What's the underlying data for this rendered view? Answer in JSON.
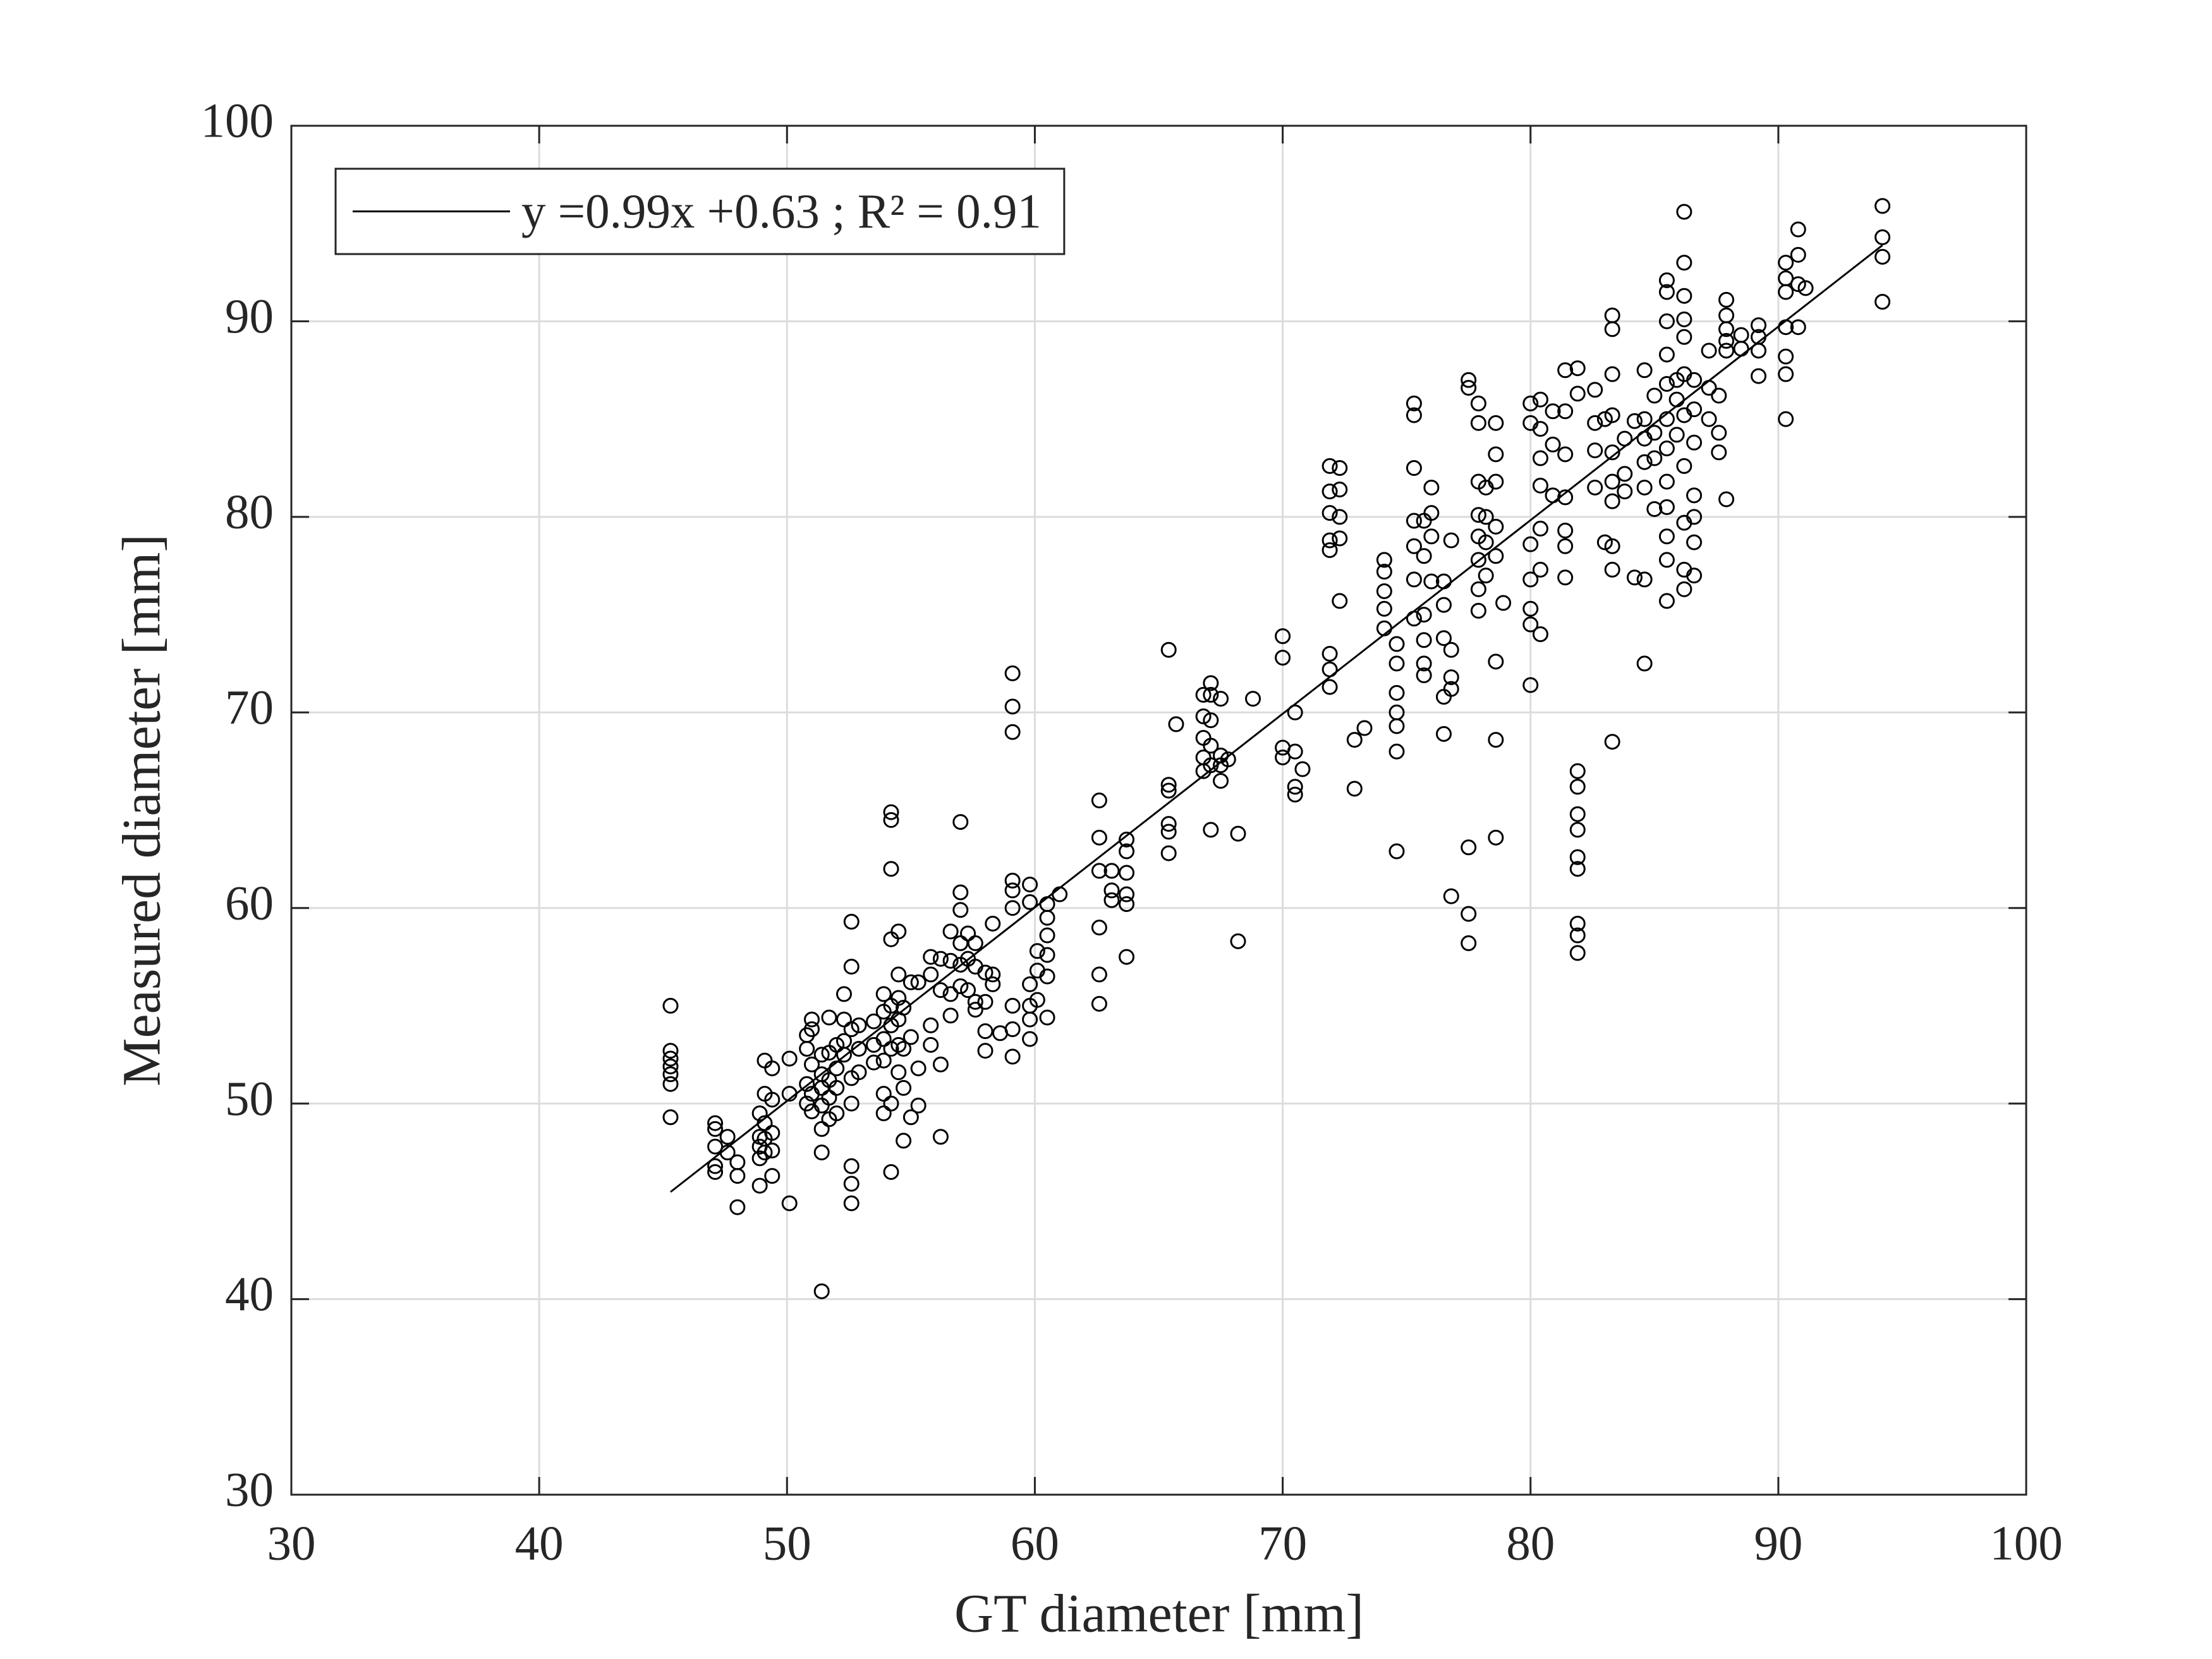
{
  "chart_data": {
    "type": "scatter",
    "xlabel": "GT diameter [mm]",
    "ylabel": "Measured diameter [mm]",
    "xlim": [
      30,
      100
    ],
    "ylim": [
      30,
      100
    ],
    "xticks": [
      30,
      40,
      50,
      60,
      70,
      80,
      90,
      100
    ],
    "yticks": [
      30,
      40,
      50,
      60,
      70,
      80,
      90,
      100
    ],
    "grid": true,
    "legend": "upper left",
    "series": [
      {
        "type": "scatter",
        "color": "#000000",
        "x": [
          45.3,
          45.3,
          45.3,
          45.3,
          45.3,
          45.3,
          45.3,
          47.1,
          47.1,
          47.1,
          47.1,
          47.1,
          47.6,
          47.6,
          48.0,
          48.0,
          48.0,
          48.9,
          48.9,
          48.9,
          48.9,
          48.9,
          49.1,
          49.1,
          49.1,
          49.1,
          49.1,
          49.4,
          49.4,
          49.4,
          49.4,
          49.4,
          50.1,
          50.1,
          50.1,
          50.8,
          50.8,
          50.8,
          50.8,
          51.0,
          51.0,
          51.0,
          51.0,
          51.0,
          51.4,
          51.4,
          51.4,
          51.4,
          51.4,
          51.4,
          51.4,
          51.7,
          51.7,
          51.7,
          51.7,
          51.7,
          52.0,
          52.0,
          52.0,
          52.0,
          52.3,
          52.3,
          52.3,
          52.3,
          52.6,
          52.6,
          52.6,
          52.6,
          52.6,
          52.6,
          52.6,
          52.6,
          52.9,
          52.9,
          52.9,
          53.5,
          53.5,
          53.5,
          53.9,
          53.9,
          53.9,
          53.9,
          53.9,
          53.9,
          54.2,
          54.2,
          54.2,
          54.2,
          54.2,
          54.2,
          54.2,
          54.2,
          54.2,
          54.5,
          54.5,
          54.5,
          54.5,
          54.5,
          54.5,
          54.7,
          54.7,
          54.7,
          54.7,
          55.0,
          55.0,
          55.0,
          55.3,
          55.3,
          55.3,
          55.8,
          55.8,
          55.8,
          55.8,
          56.2,
          56.2,
          56.2,
          56.2,
          56.6,
          56.6,
          56.6,
          56.6,
          57.0,
          57.0,
          57.0,
          57.0,
          57.0,
          57.0,
          57.3,
          57.3,
          57.3,
          57.6,
          57.6,
          57.6,
          57.6,
          58.0,
          58.0,
          58.0,
          58.0,
          58.3,
          58.3,
          58.3,
          58.6,
          59.1,
          59.1,
          59.1,
          59.1,
          59.1,
          59.1,
          59.1,
          59.1,
          59.1,
          59.8,
          59.8,
          59.8,
          59.8,
          59.8,
          59.8,
          60.1,
          60.1,
          60.1,
          60.5,
          60.5,
          60.5,
          60.5,
          60.5,
          60.5,
          61.0,
          62.6,
          62.6,
          62.6,
          62.6,
          62.6,
          62.6,
          63.1,
          63.1,
          63.1,
          63.7,
          63.7,
          63.7,
          63.7,
          63.7,
          63.7,
          65.4,
          65.4,
          65.4,
          65.4,
          65.4,
          65.4,
          65.7,
          66.8,
          66.8,
          66.8,
          66.8,
          66.8,
          67.1,
          67.1,
          67.1,
          67.1,
          67.1,
          67.1,
          67.5,
          67.5,
          67.5,
          67.5,
          67.8,
          68.2,
          68.2,
          68.8,
          70.0,
          70.0,
          70.0,
          70.0,
          70.5,
          70.5,
          70.5,
          70.5,
          70.8,
          71.9,
          71.9,
          71.9,
          71.9,
          71.9,
          71.9,
          71.9,
          71.9,
          72.3,
          72.3,
          72.3,
          72.3,
          72.3,
          72.9,
          72.9,
          73.3,
          74.1,
          74.1,
          74.1,
          74.1,
          74.1,
          74.6,
          74.6,
          74.6,
          74.6,
          74.6,
          74.6,
          74.6,
          75.3,
          75.3,
          75.3,
          75.3,
          75.3,
          75.3,
          75.3,
          75.7,
          75.7,
          75.7,
          75.7,
          75.7,
          75.7,
          76.0,
          76.0,
          76.0,
          76.0,
          76.5,
          76.5,
          76.5,
          76.5,
          76.5,
          76.8,
          76.8,
          76.8,
          76.8,
          76.8,
          77.5,
          77.5,
          77.5,
          77.5,
          77.5,
          77.9,
          77.9,
          77.9,
          77.9,
          77.9,
          77.9,
          77.9,
          77.9,
          78.2,
          78.2,
          78.2,
          78.2,
          78.6,
          78.6,
          78.6,
          78.6,
          78.6,
          78.6,
          78.6,
          78.6,
          78.9,
          80.0,
          80.0,
          80.0,
          80.0,
          80.0,
          80.0,
          80.0,
          80.4,
          80.4,
          80.4,
          80.4,
          80.4,
          80.4,
          80.4,
          80.9,
          80.9,
          80.9,
          81.4,
          81.4,
          81.4,
          81.4,
          81.4,
          81.4,
          81.4,
          81.9,
          81.9,
          81.9,
          81.9,
          81.9,
          81.9,
          81.9,
          81.9,
          81.9,
          81.9,
          81.9,
          82.6,
          82.6,
          82.6,
          82.6,
          83.0,
          83.0,
          83.3,
          83.3,
          83.3,
          83.3,
          83.3,
          83.3,
          83.3,
          83.3,
          83.3,
          83.3,
          83.8,
          83.8,
          83.8,
          84.2,
          84.2,
          84.6,
          84.6,
          84.6,
          84.6,
          84.6,
          84.6,
          84.6,
          85.0,
          85.0,
          85.0,
          85.0,
          85.5,
          85.5,
          85.5,
          85.5,
          85.5,
          85.5,
          85.5,
          85.5,
          85.5,
          85.5,
          85.5,
          85.5,
          85.9,
          85.9,
          85.9,
          86.2,
          86.2,
          86.2,
          86.2,
          86.2,
          86.2,
          86.2,
          86.2,
          86.2,
          86.2,
          86.2,
          86.6,
          86.6,
          86.6,
          86.6,
          86.6,
          86.6,
          86.6,
          87.2,
          87.2,
          87.2,
          87.6,
          87.6,
          87.6,
          87.9,
          87.9,
          87.9,
          87.9,
          87.9,
          87.9,
          88.5,
          88.5,
          89.2,
          89.2,
          89.2,
          89.2,
          90.3,
          90.3,
          90.3,
          90.3,
          90.3,
          90.3,
          90.3,
          90.8,
          90.8,
          90.8,
          90.8,
          91.1,
          94.2,
          94.2,
          94.2,
          94.2
        ],
        "values": [
          55.0,
          52.7,
          52.3,
          51.9,
          51.5,
          51.0,
          49.3,
          49.0,
          48.7,
          47.8,
          46.8,
          46.5,
          48.3,
          47.5,
          46.3,
          44.7,
          47.0,
          49.5,
          48.3,
          47.8,
          47.2,
          45.8,
          52.2,
          50.5,
          49.0,
          48.2,
          47.5,
          51.8,
          50.2,
          48.5,
          47.6,
          46.3,
          52.3,
          50.5,
          44.9,
          53.5,
          52.8,
          51.0,
          50.0,
          54.3,
          53.8,
          52.0,
          50.5,
          49.6,
          52.5,
          51.5,
          50.8,
          49.9,
          48.7,
          47.5,
          40.4,
          54.4,
          52.6,
          51.2,
          50.3,
          49.2,
          53.0,
          51.8,
          50.8,
          49.5,
          55.6,
          54.3,
          53.2,
          52.5,
          59.3,
          57.0,
          53.8,
          51.3,
          50.0,
          46.8,
          45.9,
          44.9,
          54.0,
          52.8,
          51.6,
          54.2,
          53.0,
          52.1,
          55.6,
          54.7,
          53.3,
          52.2,
          50.5,
          49.5,
          64.9,
          64.5,
          62.0,
          58.4,
          55.0,
          54.0,
          52.8,
          50.0,
          46.5,
          58.8,
          56.6,
          55.4,
          54.3,
          53.0,
          51.6,
          54.9,
          52.8,
          50.8,
          48.1,
          56.2,
          53.4,
          49.3,
          56.2,
          51.8,
          49.9,
          57.5,
          56.6,
          54.0,
          53.0,
          57.4,
          55.8,
          52.0,
          48.3,
          58.8,
          57.3,
          55.6,
          54.5,
          64.4,
          60.8,
          59.9,
          58.2,
          57.1,
          56.0,
          58.7,
          57.4,
          55.8,
          58.2,
          57.0,
          55.2,
          54.8,
          56.7,
          55.2,
          53.7,
          52.7,
          59.2,
          56.6,
          56.1,
          53.6,
          72.0,
          70.3,
          69.0,
          61.4,
          60.9,
          60.0,
          55.0,
          53.8,
          52.4,
          61.2,
          60.3,
          56.1,
          55.0,
          54.3,
          53.3,
          57.8,
          56.8,
          55.3,
          60.2,
          59.5,
          58.6,
          57.6,
          56.5,
          54.4,
          60.7,
          65.5,
          63.6,
          61.9,
          59.0,
          56.6,
          55.1,
          61.9,
          60.9,
          60.4,
          63.5,
          62.9,
          61.8,
          60.7,
          60.2,
          57.5,
          73.2,
          66.3,
          66.0,
          64.3,
          63.9,
          62.8,
          69.4,
          70.9,
          69.8,
          68.7,
          67.7,
          67.0,
          71.5,
          70.9,
          69.6,
          68.3,
          67.3,
          64.0,
          70.7,
          67.8,
          67.3,
          66.5,
          67.6,
          63.8,
          58.3,
          70.7,
          73.9,
          72.8,
          68.2,
          67.7,
          70.0,
          68.0,
          66.2,
          65.8,
          67.1,
          82.6,
          81.3,
          80.2,
          78.8,
          78.3,
          73.0,
          72.2,
          71.3,
          82.5,
          81.4,
          80.0,
          78.9,
          75.7,
          68.6,
          66.1,
          69.2,
          77.8,
          77.2,
          76.2,
          75.3,
          74.3,
          73.5,
          72.5,
          71.0,
          70.0,
          69.3,
          68.0,
          62.9,
          85.8,
          85.2,
          82.5,
          79.8,
          78.5,
          76.8,
          74.8,
          79.8,
          78.0,
          75.0,
          73.7,
          72.5,
          71.9,
          81.5,
          80.2,
          79.0,
          76.7,
          76.7,
          75.5,
          73.8,
          70.8,
          68.9,
          78.8,
          73.2,
          71.8,
          71.2,
          60.6,
          87.0,
          86.6,
          63.1,
          59.7,
          58.2,
          85.8,
          84.8,
          81.8,
          80.1,
          79.0,
          77.8,
          76.3,
          75.2,
          81.5,
          80.0,
          78.7,
          77.0,
          84.8,
          83.2,
          81.8,
          79.5,
          78.0,
          72.6,
          68.6,
          63.6,
          75.6,
          85.8,
          84.8,
          78.6,
          76.8,
          75.3,
          74.5,
          71.4,
          86.0,
          84.5,
          83.0,
          81.6,
          79.4,
          77.3,
          74.0,
          85.4,
          83.7,
          81.1,
          87.5,
          85.4,
          83.2,
          81.0,
          79.3,
          78.5,
          76.9,
          87.6,
          86.3,
          67.0,
          66.2,
          64.8,
          64.0,
          62.6,
          62.0,
          59.2,
          58.6,
          57.7,
          86.5,
          84.8,
          83.4,
          81.5,
          85.0,
          78.7,
          90.3,
          89.6,
          87.3,
          85.2,
          83.3,
          81.8,
          80.8,
          78.5,
          77.3,
          68.5,
          84.0,
          82.2,
          81.3,
          84.9,
          76.9,
          87.5,
          85.0,
          84.0,
          82.8,
          81.5,
          76.8,
          72.5,
          86.2,
          84.3,
          83.0,
          80.4,
          92.1,
          91.5,
          90.0,
          88.3,
          86.8,
          85.0,
          83.5,
          81.8,
          80.5,
          79.0,
          77.8,
          75.7,
          87.0,
          86.0,
          84.2,
          95.6,
          93.0,
          91.3,
          90.1,
          89.2,
          87.3,
          85.2,
          82.6,
          79.7,
          77.3,
          76.3,
          87.0,
          85.5,
          83.8,
          81.1,
          80.0,
          78.7,
          77.0,
          88.5,
          86.6,
          85.0,
          86.2,
          84.3,
          83.3,
          91.1,
          90.3,
          89.6,
          89.0,
          88.5,
          80.9,
          89.3,
          88.6,
          89.8,
          89.2,
          88.5,
          87.2,
          93.0,
          92.2,
          91.5,
          89.7,
          88.2,
          87.3,
          85.0,
          94.7,
          93.4,
          91.9,
          89.7,
          91.7,
          95.9,
          94.3,
          93.3,
          91.0
        ]
      },
      {
        "type": "line",
        "name": "y =0.99x +0.63 ; R² = 0.91",
        "color": "#000000",
        "x": [
          45.3,
          94.2
        ],
        "values": [
          45.48,
          93.89
        ]
      }
    ]
  }
}
